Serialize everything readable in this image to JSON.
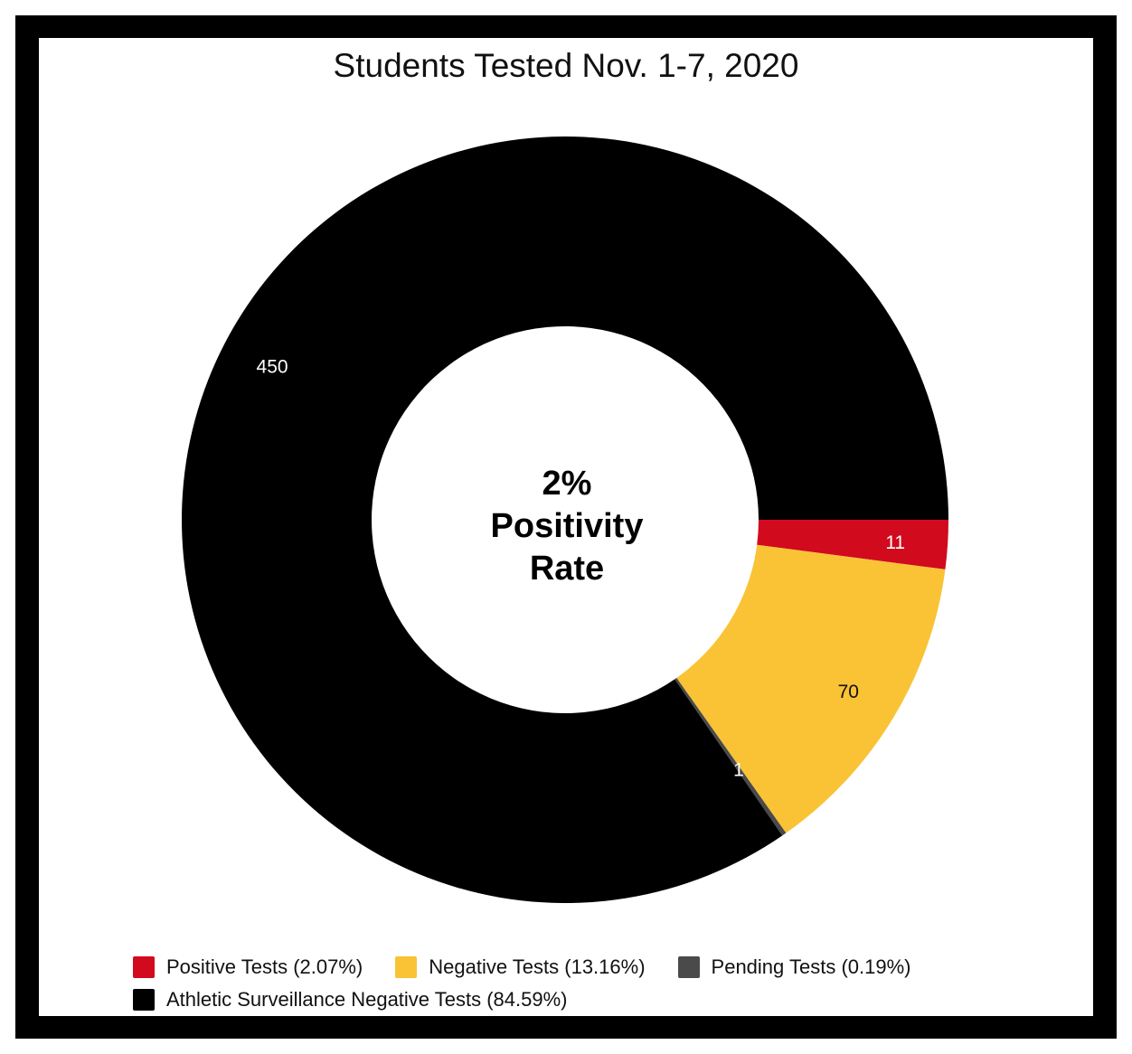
{
  "chart_data": {
    "type": "pie",
    "title": "Students Tested Nov. 1-7, 2020",
    "center_text": [
      "2%",
      "Positivity",
      "Rate"
    ],
    "slices": [
      {
        "name": "Positive Tests (2.07%)",
        "value": 11,
        "label": "11",
        "color": "#D10A1E",
        "label_color": "#ffffff"
      },
      {
        "name": "Negative Tests (13.16%)",
        "value": 70,
        "label": "70",
        "color": "#F9C335",
        "label_color": "#111111"
      },
      {
        "name": "Pending Tests (0.19%)",
        "value": 1,
        "label": "1",
        "color": "#4A4A4A",
        "label_color": "#ffffff"
      },
      {
        "name": "Athletic Surveillance Negative Tests (84.59%)",
        "value": 450,
        "label": "450",
        "color": "#000000",
        "label_color": "#ffffff"
      }
    ],
    "legend_position": "bottom"
  }
}
